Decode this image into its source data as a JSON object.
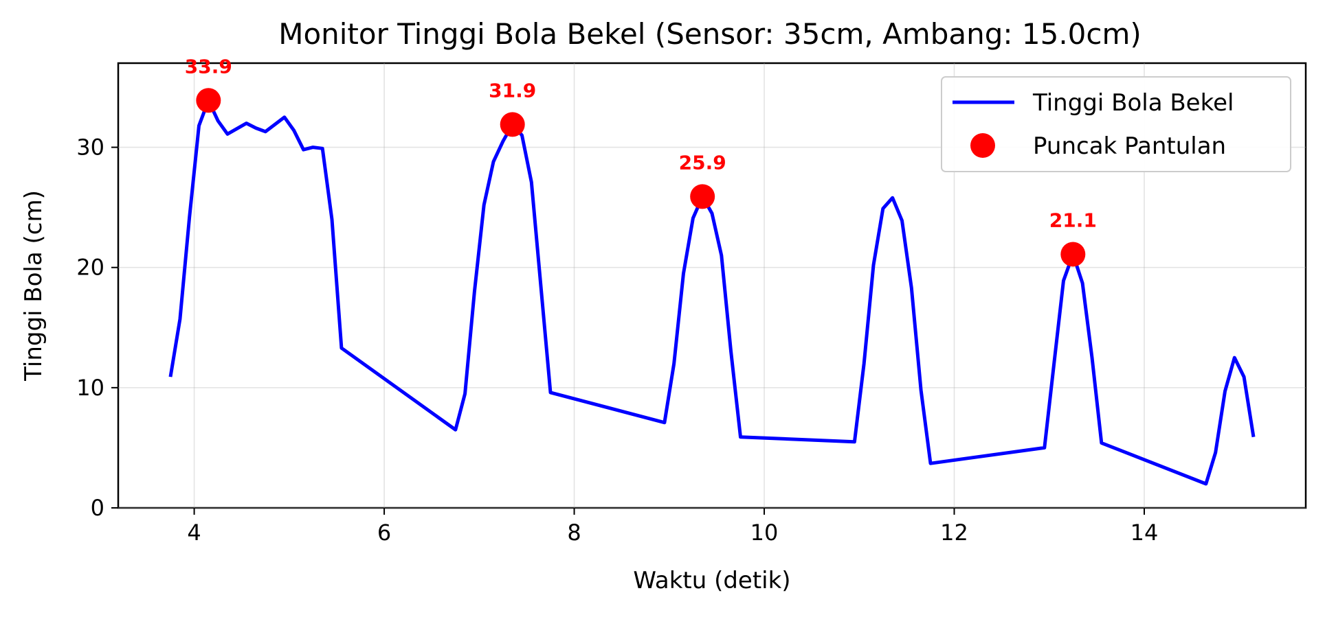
{
  "chart_data": {
    "type": "line",
    "title": "Monitor Tinggi Bola Bekel (Sensor: 35cm, Ambang: 15.0cm)",
    "xlabel": "Waktu (detik)",
    "ylabel": "Tinggi Bola (cm)",
    "xlim": [
      3.2,
      15.7
    ],
    "ylim": [
      0,
      37
    ],
    "xticks": [
      4,
      6,
      8,
      10,
      12,
      14
    ],
    "yticks": [
      0,
      10,
      20,
      30
    ],
    "grid": true,
    "legend_position": "top-right",
    "series": [
      {
        "name": "Tinggi Bola Bekel",
        "kind": "line",
        "color": "#0000ff",
        "points": [
          [
            3.75,
            10.9
          ],
          [
            3.85,
            15.7
          ],
          [
            3.95,
            24.2
          ],
          [
            4.05,
            31.8
          ],
          [
            4.15,
            33.9
          ],
          [
            4.25,
            32.2
          ],
          [
            4.35,
            31.1
          ],
          [
            4.55,
            32.0
          ],
          [
            4.65,
            31.6
          ],
          [
            4.75,
            31.3
          ],
          [
            4.95,
            32.5
          ],
          [
            5.05,
            31.4
          ],
          [
            5.15,
            29.8
          ],
          [
            5.25,
            30.0
          ],
          [
            5.35,
            29.9
          ],
          [
            5.45,
            24.0
          ],
          [
            5.55,
            13.3
          ],
          [
            6.75,
            6.5
          ],
          [
            6.85,
            9.5
          ],
          [
            6.95,
            18.0
          ],
          [
            7.05,
            25.2
          ],
          [
            7.15,
            28.8
          ],
          [
            7.25,
            30.5
          ],
          [
            7.35,
            31.9
          ],
          [
            7.45,
            31.0
          ],
          [
            7.55,
            27.1
          ],
          [
            7.75,
            9.6
          ],
          [
            8.95,
            7.1
          ],
          [
            9.05,
            12.0
          ],
          [
            9.15,
            19.5
          ],
          [
            9.25,
            24.1
          ],
          [
            9.35,
            25.9
          ],
          [
            9.45,
            24.5
          ],
          [
            9.55,
            21.0
          ],
          [
            9.65,
            13.0
          ],
          [
            9.75,
            5.9
          ],
          [
            10.95,
            5.5
          ],
          [
            11.05,
            12.0
          ],
          [
            11.15,
            20.2
          ],
          [
            11.25,
            24.9
          ],
          [
            11.35,
            25.8
          ],
          [
            11.45,
            23.9
          ],
          [
            11.55,
            18.3
          ],
          [
            11.65,
            9.8
          ],
          [
            11.75,
            3.7
          ],
          [
            12.95,
            5.0
          ],
          [
            13.05,
            12.0
          ],
          [
            13.15,
            18.9
          ],
          [
            13.25,
            21.1
          ],
          [
            13.35,
            18.7
          ],
          [
            13.45,
            12.5
          ],
          [
            13.55,
            5.4
          ],
          [
            14.65,
            2.0
          ],
          [
            14.75,
            4.6
          ],
          [
            14.85,
            9.7
          ],
          [
            14.95,
            12.5
          ],
          [
            15.05,
            10.9
          ],
          [
            15.15,
            5.9
          ]
        ]
      },
      {
        "name": "Puncak Pantulan",
        "kind": "scatter",
        "color": "#ff0000",
        "points": [
          [
            4.15,
            33.9
          ],
          [
            7.35,
            31.9
          ],
          [
            9.35,
            25.9
          ],
          [
            13.25,
            21.1
          ]
        ]
      }
    ],
    "annotations": [
      {
        "x": 4.15,
        "y": 33.9,
        "text": "33.9",
        "color": "#ff0000"
      },
      {
        "x": 7.35,
        "y": 31.9,
        "text": "31.9",
        "color": "#ff0000"
      },
      {
        "x": 9.35,
        "y": 25.9,
        "text": "25.9",
        "color": "#ff0000"
      },
      {
        "x": 13.25,
        "y": 21.1,
        "text": "21.1",
        "color": "#ff0000"
      }
    ]
  }
}
